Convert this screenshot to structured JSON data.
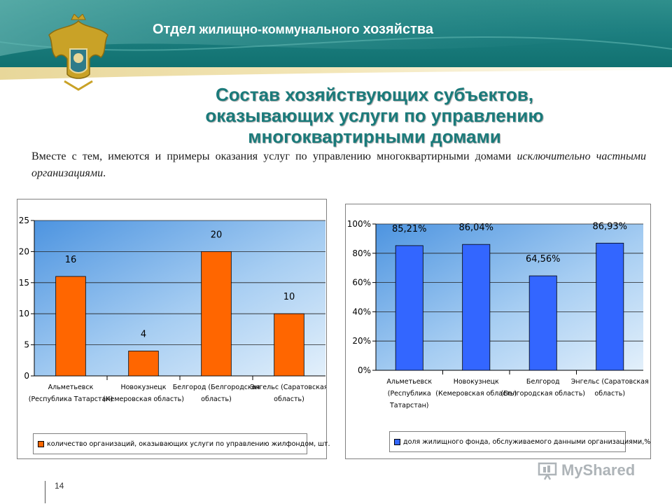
{
  "header": {
    "title_part1": "Отдел",
    "title_part2": " жилищно-коммунального ",
    "title_part3": "хозяйства"
  },
  "slide": {
    "title_lines": [
      "Состав хозяйствующих субъектов,",
      "оказывающих услуги по управлению",
      "многоквартирными домами"
    ],
    "body_normal": "Вместе с тем, имеются и примеры оказания услуг по управлению многоквартирными домами ",
    "body_italic": "исключительно частными организациями",
    "body_end": "."
  },
  "colors": {
    "orange_bar": "#ff6600",
    "blue_bar": "#3366ff",
    "header_teal": "#1d7f80",
    "title_teal": "#1a7a7a"
  },
  "chart_data": [
    {
      "type": "bar",
      "categories": [
        [
          "Альметьевск",
          "(Республика Татарстан)"
        ],
        [
          "Новокузнецк",
          "(Кемеровская область)"
        ],
        [
          "Белгород (Белгородская",
          "область)"
        ],
        [
          "Энгельс (Саратовская",
          "область)"
        ]
      ],
      "series": [
        {
          "name": "количество организаций, оказывающих услуги по управлению жилфондом, шт.",
          "values": [
            16,
            4,
            20,
            10
          ]
        }
      ],
      "data_labels": [
        "16",
        "4",
        "20",
        "10"
      ],
      "yticks": [
        "0",
        "5",
        "10",
        "15",
        "20",
        "25"
      ],
      "ylim": [
        0,
        25
      ],
      "grid": true,
      "legend": "bottom",
      "color": "#ff6600"
    },
    {
      "type": "bar",
      "categories": [
        [
          "Альметьевск",
          "(Республика",
          "Татарстан)"
        ],
        [
          "Новокузнецк",
          "(Кемеровская область)"
        ],
        [
          "Белгород",
          "(Белгородская область)"
        ],
        [
          "Энгельс (Саратовская",
          "область)"
        ]
      ],
      "series": [
        {
          "name": "доля жилищного фонда, обслуживаемого данными организациями,%",
          "values": [
            85.21,
            86.04,
            64.56,
            86.93
          ]
        }
      ],
      "data_labels": [
        "85,21%",
        "86,04%",
        "64,56%",
        "86,93%"
      ],
      "yticks": [
        "0%",
        "20%",
        "40%",
        "60%",
        "80%",
        "100%"
      ],
      "ylim": [
        0,
        100
      ],
      "grid": true,
      "legend": "bottom",
      "color": "#3366ff"
    }
  ],
  "footer": {
    "page_number": "14",
    "watermark": "MyShared"
  }
}
